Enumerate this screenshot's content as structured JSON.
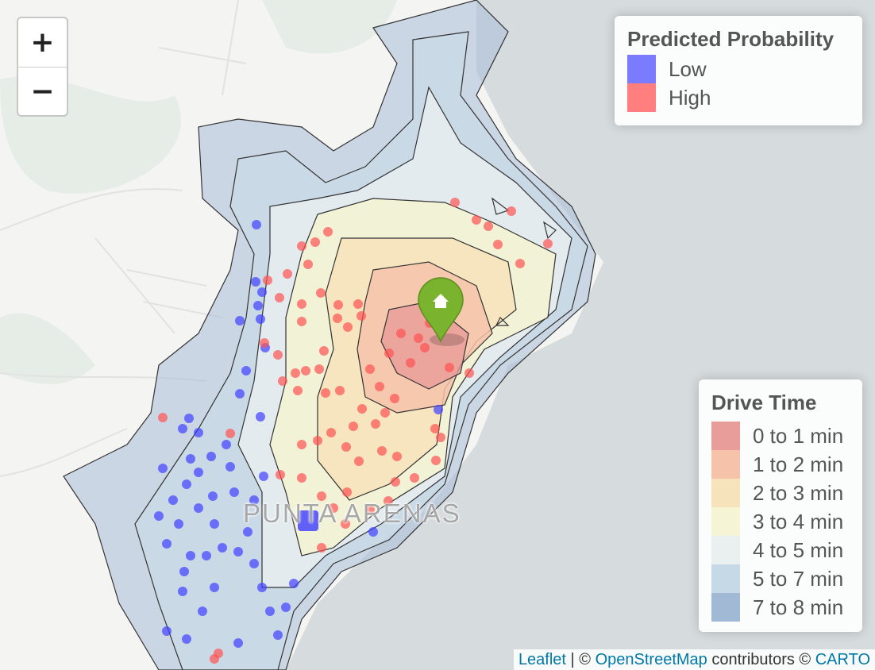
{
  "zoom": {
    "in_label": "+",
    "out_label": "−"
  },
  "map": {
    "city_label": "PUNTA ARENAS",
    "marker_icon": "home-icon",
    "marker_color": "#7ab32e",
    "land_color": "#f4f4f2",
    "water_color": "#d4dadc"
  },
  "prob_legend": {
    "title": "Predicted Probability",
    "items": [
      {
        "label": "Low",
        "color": "#7b7bff"
      },
      {
        "label": "High",
        "color": "#ff7f7f"
      }
    ]
  },
  "drive_legend": {
    "title": "Drive Time",
    "items": [
      {
        "label": "0 to 1 min",
        "color": "#e99d9a"
      },
      {
        "label": "1 to 2 min",
        "color": "#f6c2aa"
      },
      {
        "label": "2 to 3 min",
        "color": "#f6e3bb"
      },
      {
        "label": "3 to 4 min",
        "color": "#f5f4d4"
      },
      {
        "label": "4 to 5 min",
        "color": "#eaf0f0"
      },
      {
        "label": "5 to 7 min",
        "color": "#c6d9e6"
      },
      {
        "label": "7 to 8 min",
        "color": "#a2b9d6"
      }
    ]
  },
  "attribution": {
    "leaflet": "Leaflet",
    "sep1": " | © ",
    "osm": "OpenStreetMap",
    "contrib": " contributors © ",
    "carto": "CARTO"
  }
}
